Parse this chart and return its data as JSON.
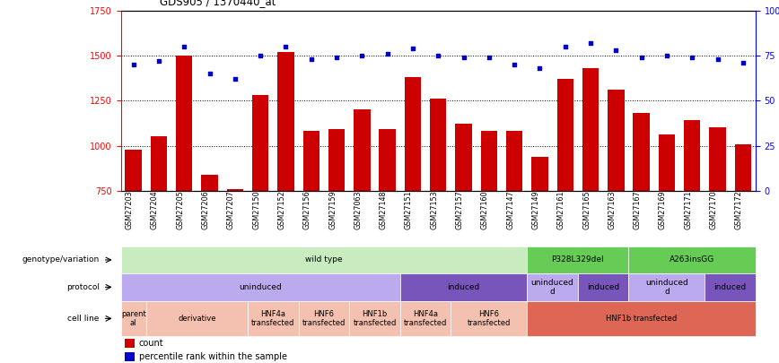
{
  "title": "GDS905 / 1370440_at",
  "samples": [
    "GSM27203",
    "GSM27204",
    "GSM27205",
    "GSM27206",
    "GSM27207",
    "GSM27150",
    "GSM27152",
    "GSM27156",
    "GSM27159",
    "GSM27063",
    "GSM27148",
    "GSM27151",
    "GSM27153",
    "GSM27157",
    "GSM27160",
    "GSM27147",
    "GSM27149",
    "GSM27161",
    "GSM27165",
    "GSM27163",
    "GSM27167",
    "GSM27169",
    "GSM27171",
    "GSM27170",
    "GSM27172"
  ],
  "counts": [
    980,
    1050,
    1500,
    840,
    760,
    1280,
    1520,
    1080,
    1090,
    1200,
    1090,
    1380,
    1260,
    1120,
    1080,
    1080,
    940,
    1370,
    1430,
    1310,
    1180,
    1060,
    1140,
    1100,
    1010
  ],
  "percentiles": [
    70,
    72,
    80,
    65,
    62,
    75,
    80,
    73,
    74,
    75,
    76,
    79,
    75,
    74,
    74,
    70,
    68,
    80,
    82,
    78,
    74,
    75,
    74,
    73,
    71
  ],
  "ylim_left": [
    750,
    1750
  ],
  "ylim_right": [
    0,
    100
  ],
  "yticks_left": [
    750,
    1000,
    1250,
    1500,
    1750
  ],
  "yticks_right": [
    0,
    25,
    50,
    75,
    100
  ],
  "bar_color": "#cc0000",
  "dot_color": "#0000cc",
  "genotype_row": {
    "label": "genotype/variation",
    "segments": [
      {
        "text": "wild type",
        "start": 0,
        "end": 16,
        "color": "#c8ecc0"
      },
      {
        "text": "P328L329del",
        "start": 16,
        "end": 20,
        "color": "#66cc55"
      },
      {
        "text": "A263insGG",
        "start": 20,
        "end": 25,
        "color": "#66cc55"
      }
    ]
  },
  "protocol_row": {
    "label": "protocol",
    "segments": [
      {
        "text": "uninduced",
        "start": 0,
        "end": 11,
        "color": "#bbaaee"
      },
      {
        "text": "induced",
        "start": 11,
        "end": 16,
        "color": "#7755bb"
      },
      {
        "text": "uninduced\nd",
        "start": 16,
        "end": 18,
        "color": "#bbaaee"
      },
      {
        "text": "induced",
        "start": 18,
        "end": 20,
        "color": "#7755bb"
      },
      {
        "text": "uninduced\nd",
        "start": 20,
        "end": 23,
        "color": "#bbaaee"
      },
      {
        "text": "induced",
        "start": 23,
        "end": 25,
        "color": "#7755bb"
      }
    ]
  },
  "cellline_row": {
    "label": "cell line",
    "segments": [
      {
        "text": "parent\nal",
        "start": 0,
        "end": 1,
        "color": "#f4c0b0"
      },
      {
        "text": "derivative",
        "start": 1,
        "end": 5,
        "color": "#f4c0b0"
      },
      {
        "text": "HNF4a\ntransfected",
        "start": 5,
        "end": 7,
        "color": "#f4c0b0"
      },
      {
        "text": "HNF6\ntransfected",
        "start": 7,
        "end": 9,
        "color": "#f4c0b0"
      },
      {
        "text": "HNF1b\ntransfected",
        "start": 9,
        "end": 11,
        "color": "#f4c0b0"
      },
      {
        "text": "HNF4a\ntransfected",
        "start": 11,
        "end": 13,
        "color": "#f4c0b0"
      },
      {
        "text": "HNF6\ntransfected",
        "start": 13,
        "end": 16,
        "color": "#f4c0b0"
      },
      {
        "text": "HNF1b transfected",
        "start": 16,
        "end": 25,
        "color": "#dd6655"
      }
    ]
  }
}
